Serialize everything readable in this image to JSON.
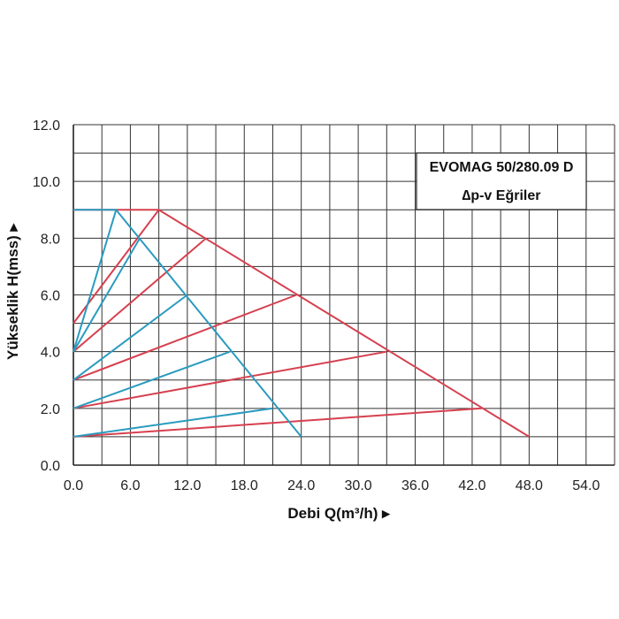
{
  "chart_data": {
    "type": "line",
    "title": "EVOMAG 50/280.09 D",
    "subtitle": "∆p-v Eğriler",
    "xlabel": "Debi Q(m³/h) ▸",
    "ylabel": "Yükseklik H(mss) ▸",
    "xlim": [
      0,
      57
    ],
    "ylim": [
      0,
      12
    ],
    "xticks": [
      "0.0",
      "6.0",
      "12.0",
      "18.0",
      "24.0",
      "30.0",
      "36.0",
      "42.0",
      "48.0",
      "54.0"
    ],
    "xtick_values": [
      0,
      6,
      12,
      18,
      24,
      30,
      36,
      42,
      48,
      54
    ],
    "yticks": [
      "0.0",
      "2.0",
      "4.0",
      "6.0",
      "8.0",
      "10.0",
      "12.0"
    ],
    "ytick_values": [
      0,
      2,
      4,
      6,
      8,
      10,
      12
    ],
    "grid": true,
    "colors": {
      "red": "#d6404f",
      "blue": "#2a9bbf",
      "grid": "#333333"
    },
    "series": [
      {
        "color": "red",
        "x": [
          0,
          9.0,
          48.0
        ],
        "y": [
          9.0,
          9.0,
          1.0
        ]
      },
      {
        "color": "red",
        "x": [
          0,
          9.0
        ],
        "y": [
          5.0,
          9.0
        ]
      },
      {
        "color": "red",
        "x": [
          0,
          14.0
        ],
        "y": [
          4.0,
          8.0
        ]
      },
      {
        "color": "red",
        "x": [
          0,
          23.5
        ],
        "y": [
          3.0,
          6.0
        ]
      },
      {
        "color": "red",
        "x": [
          0,
          33.0
        ],
        "y": [
          2.0,
          4.0
        ]
      },
      {
        "color": "red",
        "x": [
          0,
          43.0
        ],
        "y": [
          1.0,
          2.0
        ]
      },
      {
        "color": "blue",
        "x": [
          0,
          4.5,
          24.0
        ],
        "y": [
          9.0,
          9.0,
          1.0
        ]
      },
      {
        "color": "blue",
        "x": [
          0,
          4.5
        ],
        "y": [
          4.0,
          9.0
        ]
      },
      {
        "color": "blue",
        "x": [
          0,
          7.0
        ],
        "y": [
          4.0,
          8.0
        ]
      },
      {
        "color": "blue",
        "x": [
          0,
          12.0
        ],
        "y": [
          3.0,
          6.0
        ]
      },
      {
        "color": "blue",
        "x": [
          0,
          16.5
        ],
        "y": [
          2.0,
          4.0
        ]
      },
      {
        "color": "blue",
        "x": [
          0,
          21.0
        ],
        "y": [
          1.0,
          2.0
        ]
      }
    ]
  }
}
